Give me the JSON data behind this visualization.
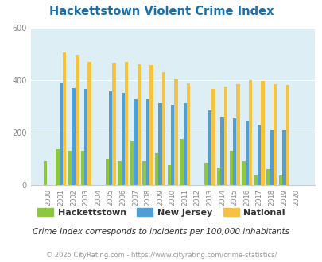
{
  "title": "Hackettstown Violent Crime Index",
  "years": [
    2000,
    2001,
    2002,
    2003,
    2004,
    2005,
    2006,
    2007,
    2008,
    2009,
    2010,
    2011,
    2012,
    2013,
    2014,
    2015,
    2016,
    2017,
    2018,
    2019,
    2020
  ],
  "hackettstown": [
    90,
    135,
    130,
    130,
    0,
    100,
    90,
    170,
    90,
    120,
    75,
    175,
    0,
    85,
    65,
    130,
    90,
    35,
    60,
    35,
    0
  ],
  "new_jersey": [
    0,
    390,
    370,
    365,
    0,
    355,
    350,
    325,
    325,
    310,
    305,
    310,
    0,
    285,
    260,
    253,
    243,
    228,
    208,
    208,
    0
  ],
  "national": [
    0,
    505,
    495,
    470,
    0,
    465,
    470,
    460,
    455,
    430,
    405,
    388,
    0,
    367,
    375,
    383,
    398,
    397,
    383,
    380,
    0
  ],
  "hackettstown_color": "#8dc63f",
  "new_jersey_color": "#4f9fd4",
  "national_color": "#f5c242",
  "fig_bg_color": "#ffffff",
  "plot_bg_color": "#ddeef5",
  "grid_color": "#ffffff",
  "ylim": [
    0,
    600
  ],
  "yticks": [
    0,
    200,
    400,
    600
  ],
  "subtitle": "Crime Index corresponds to incidents per 100,000 inhabitants",
  "footer": "© 2025 CityRating.com - https://www.cityrating.com/crime-statistics/",
  "legend_labels": [
    "Hackettstown",
    "New Jersey",
    "National"
  ],
  "title_color": "#1a6fab",
  "tick_color": "#888888",
  "subtitle_color": "#333333",
  "footer_color": "#999999"
}
